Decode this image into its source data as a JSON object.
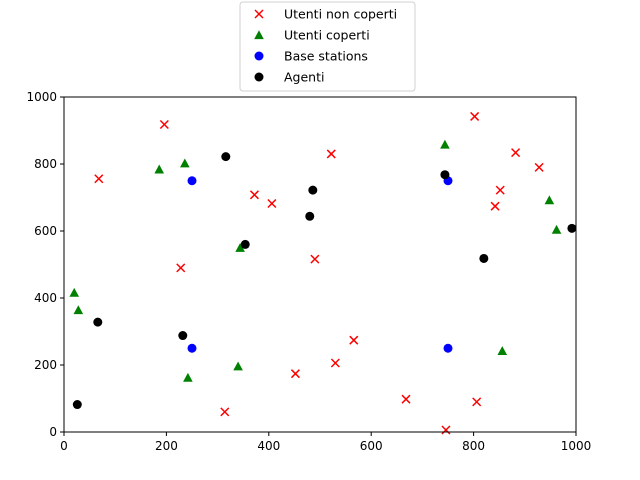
{
  "chart_data": {
    "type": "scatter",
    "title": "",
    "xlabel": "",
    "ylabel": "",
    "xlim": [
      0,
      1000
    ],
    "ylim": [
      0,
      1000
    ],
    "xticks": [
      0,
      200,
      400,
      600,
      800,
      1000
    ],
    "yticks": [
      0,
      200,
      400,
      600,
      800,
      1000
    ],
    "grid": false,
    "legend_position": "top-center",
    "series": [
      {
        "name": "Utenti non coperti",
        "marker": "x",
        "color": "#ff0000",
        "points": [
          [
            196,
            918
          ],
          [
            68,
            756
          ],
          [
            228,
            490
          ],
          [
            372,
            708
          ],
          [
            406,
            682
          ],
          [
            522,
            830
          ],
          [
            490,
            516
          ],
          [
            566,
            274
          ],
          [
            530,
            206
          ],
          [
            452,
            174
          ],
          [
            314,
            60
          ],
          [
            668,
            98
          ],
          [
            746,
            6
          ],
          [
            806,
            90
          ],
          [
            802,
            942
          ],
          [
            882,
            834
          ],
          [
            928,
            790
          ],
          [
            852,
            722
          ],
          [
            842,
            674
          ]
        ]
      },
      {
        "name": "Utenti coperti",
        "marker": "triangle",
        "color": "#008000",
        "points": [
          [
            186,
            784
          ],
          [
            236,
            802
          ],
          [
            344,
            550
          ],
          [
            20,
            416
          ],
          [
            28,
            364
          ],
          [
            242,
            162
          ],
          [
            340,
            196
          ],
          [
            744,
            858
          ],
          [
            948,
            692
          ],
          [
            962,
            604
          ],
          [
            856,
            242
          ]
        ]
      },
      {
        "name": "Base stations",
        "marker": "circle",
        "color": "#0000ff",
        "points": [
          [
            250,
            750
          ],
          [
            250,
            250
          ],
          [
            750,
            750
          ],
          [
            750,
            250
          ]
        ]
      },
      {
        "name": "Agenti",
        "marker": "circle",
        "color": "#000000",
        "points": [
          [
            316,
            822
          ],
          [
            354,
            560
          ],
          [
            486,
            722
          ],
          [
            480,
            644
          ],
          [
            66,
            328
          ],
          [
            232,
            288
          ],
          [
            26,
            82
          ],
          [
            744,
            768
          ],
          [
            820,
            518
          ],
          [
            992,
            608
          ]
        ]
      }
    ]
  }
}
